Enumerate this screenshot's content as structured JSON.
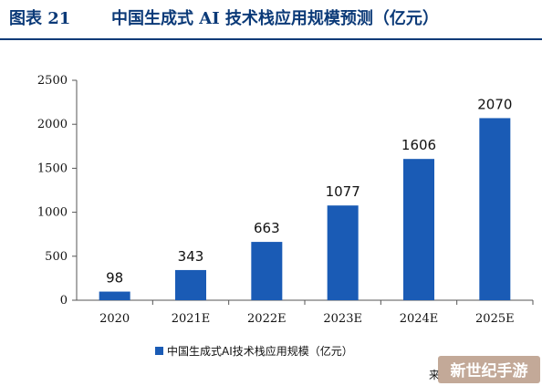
{
  "figure": {
    "label": "图表 21",
    "title": "中国生成式 AI 技术栈应用规模预测（亿元）"
  },
  "chart_data": {
    "type": "bar",
    "categories": [
      "2020",
      "2021E",
      "2022E",
      "2023E",
      "2024E",
      "2025E"
    ],
    "series": [
      {
        "name": "中国生成式AI技术栈应用规模（亿元）",
        "values": [
          98,
          343,
          663,
          1077,
          1606,
          2070
        ]
      }
    ],
    "data_labels": [
      "98",
      "343",
      "663",
      "1077",
      "1606",
      "2070"
    ],
    "ylim": [
      0,
      2500
    ],
    "yticks": [
      0,
      500,
      1000,
      1500,
      2000,
      2500
    ],
    "grid": false,
    "legend_position": "bottom",
    "bar_color": "#1a5bb5"
  },
  "watermark": {
    "text": "新世纪手游",
    "partial_text": "来"
  },
  "colors": {
    "title": "#0b3a78",
    "bar": "#1a5bb5",
    "watermark_bg": "#b89a86"
  }
}
